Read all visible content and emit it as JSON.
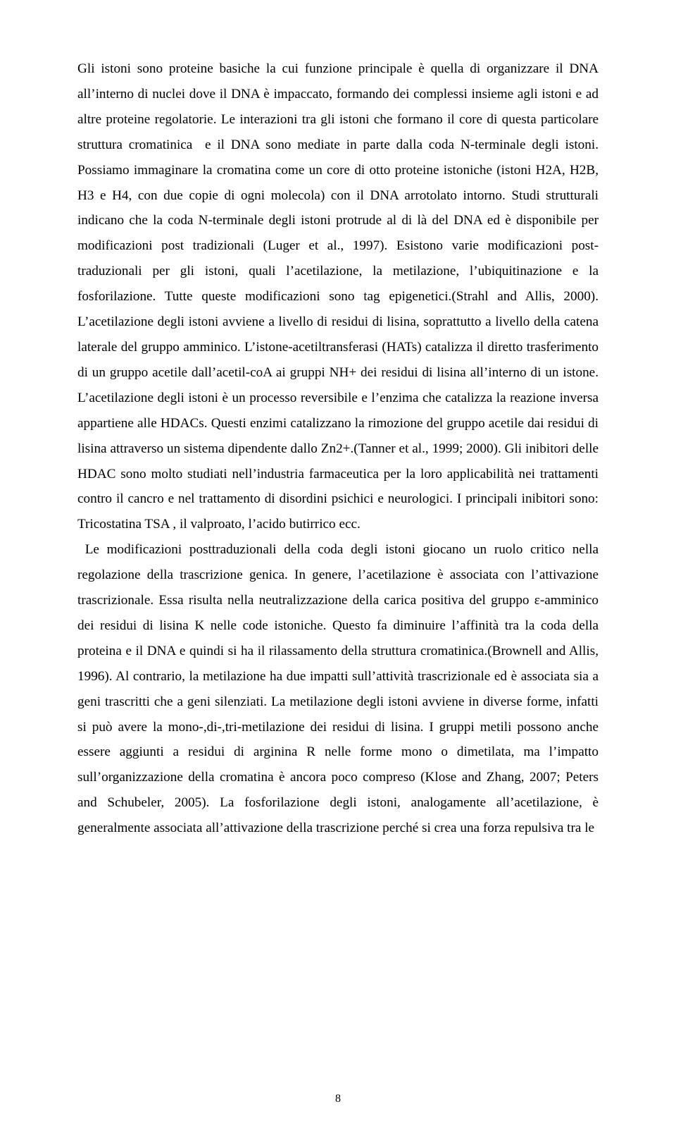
{
  "document": {
    "page_number": "8",
    "font_family": "Times New Roman",
    "font_size_pt": 14,
    "line_height": 1.87,
    "text_color": "#000000",
    "background_color": "#ffffff",
    "text_align": "justify",
    "body": "Gli istoni sono proteine basiche la cui funzione principale è quella di organizzare il DNA all’interno di nuclei dove il DNA è impaccato, formando dei complessi insieme agli istoni e ad altre proteine regolatorie. Le interazioni tra gli istoni che formano il core di questa particolare struttura cromatinica  e il DNA sono mediate in parte dalla coda N-terminale degli istoni. Possiamo immaginare la cromatina come un core di otto proteine istoniche (istoni H2A, H2B, H3 e H4, con due copie di ogni molecola) con il DNA arrotolato intorno. Studi strutturali indicano che la coda N-terminale degli istoni protrude al di là del DNA ed è disponibile per modificazioni post tradizionali (Luger et al., 1997). Esistono varie modificazioni post-traduzionali per gli istoni, quali l’acetilazione, la metilazione, l’ubiquitinazione e la fosforilazione. Tutte queste modificazioni sono tag epigenetici.(Strahl and Allis, 2000). L’acetilazione degli istoni avviene a livello di residui di lisina, soprattutto a livello della catena laterale del gruppo amminico. L’istone-acetiltransferasi (HATs) catalizza il diretto trasferimento di un gruppo acetile dall’acetil-coA ai gruppi NH+ dei residui di lisina all’interno di un istone. L’acetilazione degli istoni è un processo reversibile e l’enzima che catalizza la reazione inversa appartiene alle HDACs. Questi enzimi catalizzano la rimozione del gruppo acetile dai residui di lisina attraverso un sistema dipendente dallo Zn2+.(Tanner et al., 1999; 2000). Gli inibitori delle HDAC sono molto studiati nell’industria farmaceutica per la loro applicabilità nei trattamenti contro il cancro e nel trattamento di disordini psichici e neurologici. I principali inibitori sono: Tricostatina TSA , il valproato, l’acido butirrico ecc.\n Le modificazioni posttraduzionali della coda degli istoni giocano un ruolo critico nella regolazione della trascrizione genica. In genere, l’acetilazione è associata con l’attivazione trascrizionale. Essa risulta nella neutralizzazione della carica positiva del gruppo ε-amminico dei residui di lisina K nelle code istoniche. Questo fa diminuire l’affinità tra la coda della proteina e il DNA e quindi si ha il rilassamento della struttura cromatinica.(Brownell and Allis, 1996). Al contrario, la metilazione ha due impatti sull’attività trascrizionale ed è associata sia a geni trascritti che a geni silenziati. La metilazione degli istoni avviene in diverse forme, infatti si può avere la mono-,di-,tri-metilazione dei residui di lisina. I gruppi metili possono anche essere aggiunti a residui di arginina R nelle forme mono o dimetilata, ma l’impatto sull’organizzazione della cromatina è ancora poco compreso (Klose and Zhang, 2007; Peters and Schubeler, 2005). La fosforilazione degli istoni, analogamente all’acetilazione, è generalmente associata all’attivazione della trascrizione perché si crea una forza repulsiva tra le"
  }
}
